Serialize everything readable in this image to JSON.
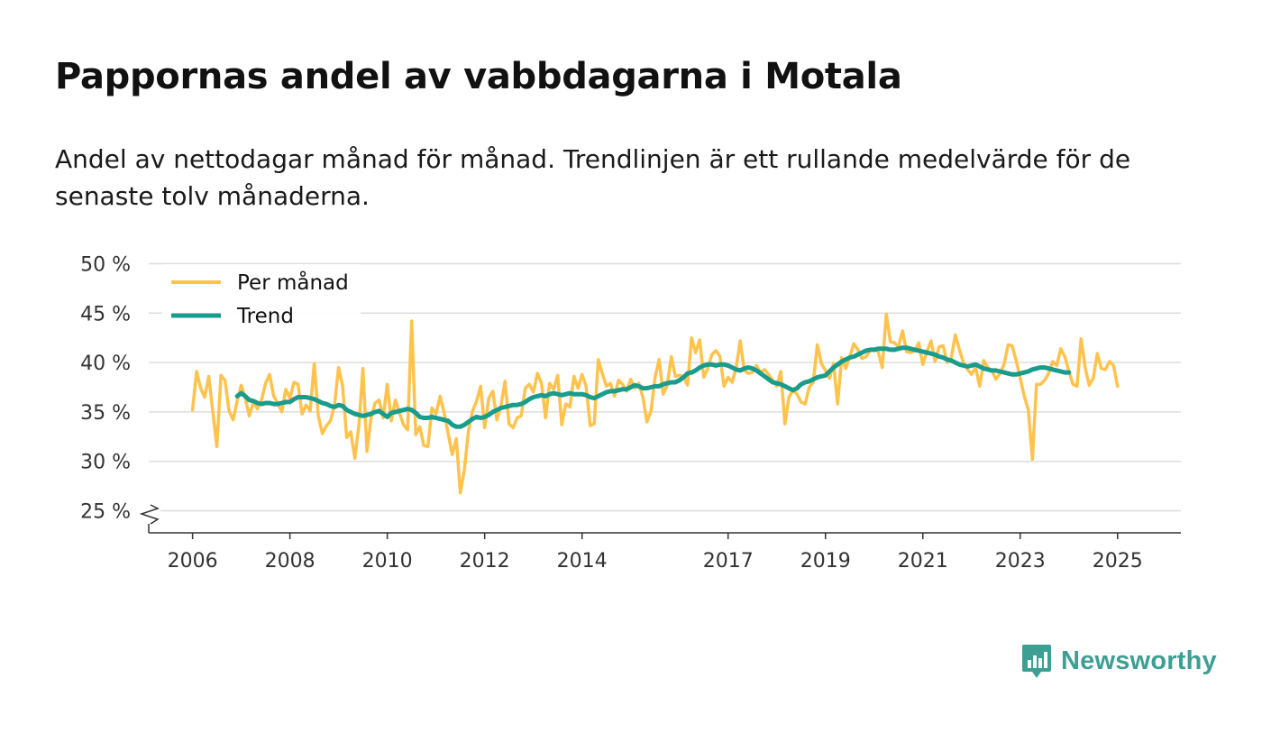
{
  "title": "Pappornas andel av vabbdagarna i Motala",
  "subtitle": "Andel av nettodagar månad för månad. Trendlinjen är ett rullande medelvärde för de senaste tolv månaderna.",
  "brand": {
    "name": "Newsworthy",
    "color": "#3d9f93"
  },
  "colors": {
    "monthly": "#ffc34d",
    "trend": "#1a9c8c",
    "grid": "#dddddd",
    "axis": "#333333"
  },
  "chart_data": {
    "type": "line",
    "ylim": [
      25,
      50
    ],
    "yticks": [
      25,
      30,
      35,
      40,
      45,
      50
    ],
    "ytick_labels": [
      "25 %",
      "30 %",
      "35 %",
      "40 %",
      "45 %",
      "50 %"
    ],
    "xticks": [
      2006,
      2008,
      2010,
      2012,
      2014,
      2017,
      2019,
      2021,
      2023,
      2025
    ],
    "xtick_labels": [
      "2006",
      "2008",
      "2010",
      "2012",
      "2014",
      "2017",
      "2019",
      "2021",
      "2023",
      "2025"
    ],
    "xlim": [
      2005.1,
      2026.3
    ],
    "legend": {
      "position": "top-left",
      "entries": [
        "Per månad",
        "Trend"
      ]
    },
    "series": [
      {
        "name": "Per månad",
        "start": 2006.0,
        "step": 0.0833333,
        "values": [
          35.2,
          39.1,
          37.4,
          36.5,
          38.6,
          35.0,
          31.5,
          38.7,
          38.2,
          35.1,
          34.2,
          36.1,
          37.7,
          36.4,
          34.6,
          36.0,
          35.3,
          36.2,
          37.9,
          38.8,
          36.6,
          35.9,
          35.0,
          37.3,
          36.4,
          38.0,
          37.8,
          34.8,
          35.7,
          35.1,
          39.9,
          34.6,
          32.8,
          33.6,
          34.1,
          35.7,
          39.5,
          37.6,
          32.4,
          33.0,
          30.3,
          33.6,
          39.4,
          31.0,
          34.4,
          35.9,
          36.2,
          34.4,
          37.8,
          34.1,
          36.2,
          34.9,
          33.7,
          33.2,
          44.2,
          32.7,
          33.5,
          31.6,
          31.5,
          35.4,
          34.8,
          36.6,
          34.9,
          32.8,
          30.7,
          32.3,
          26.8,
          29.2,
          33.1,
          35.1,
          36.1,
          37.6,
          33.4,
          36.4,
          37.1,
          34.2,
          35.6,
          38.1,
          33.8,
          33.4,
          34.4,
          34.6,
          37.4,
          37.8,
          37.0,
          38.9,
          37.9,
          34.4,
          37.9,
          37.3,
          38.7,
          33.7,
          35.8,
          35.5,
          38.6,
          37.4,
          38.8,
          37.6,
          33.6,
          33.8,
          40.3,
          38.9,
          37.6,
          37.9,
          36.6,
          38.2,
          37.8,
          37.1,
          38.3,
          37.4,
          37.9,
          36.5,
          34.0,
          35.1,
          38.5,
          40.3,
          36.8,
          37.7,
          40.6,
          38.6,
          38.7,
          38.6,
          37.7,
          42.5,
          41.0,
          42.3,
          38.5,
          39.4,
          40.8,
          41.2,
          40.6,
          37.6,
          38.5,
          38.0,
          39.5,
          42.2,
          39.2,
          38.9,
          39.0,
          39.7,
          39.0,
          39.3,
          38.8,
          38.2,
          37.6,
          39.1,
          33.8,
          36.5,
          37.2,
          36.8,
          36.0,
          35.8,
          37.5,
          38.0,
          41.8,
          39.9,
          39.2,
          38.4,
          39.9,
          35.8,
          40.5,
          39.4,
          40.6,
          41.9,
          41.3,
          40.4,
          40.6,
          41.2,
          41.4,
          41.1,
          39.5,
          44.9,
          42.1,
          42.0,
          41.6,
          43.2,
          41.1,
          41.0,
          41.2,
          42.0,
          39.8,
          41.1,
          42.2,
          40.1,
          41.6,
          41.7,
          40.0,
          40.5,
          42.8,
          41.3,
          40.0,
          39.3,
          38.8,
          39.5,
          37.6,
          40.2,
          39.5,
          39.2,
          38.3,
          38.9,
          39.8,
          41.8,
          41.7,
          40.2,
          38.4,
          36.6,
          35.2,
          30.2,
          37.8,
          37.8,
          38.2,
          38.9,
          40.1,
          39.7,
          41.4,
          40.6,
          39.1,
          37.8,
          37.6,
          42.4,
          39.5,
          37.7,
          38.4,
          40.9,
          39.4,
          39.3,
          40.1,
          39.7,
          37.6
        ]
      },
      {
        "name": "Trend",
        "start": 2006.9167,
        "step": 0.0833333,
        "values": [
          36.6,
          36.9,
          36.6,
          36.2,
          36.1,
          35.9,
          35.8,
          35.9,
          35.9,
          35.8,
          35.8,
          35.9,
          36.0,
          36.0,
          36.3,
          36.5,
          36.5,
          36.5,
          36.4,
          36.3,
          36.1,
          35.9,
          35.8,
          35.6,
          35.5,
          35.7,
          35.6,
          35.2,
          35.0,
          34.8,
          34.7,
          34.6,
          34.7,
          34.8,
          35.0,
          35.1,
          34.8,
          34.5,
          34.9,
          35.0,
          35.1,
          35.2,
          35.3,
          35.2,
          34.9,
          34.5,
          34.4,
          34.4,
          34.5,
          34.4,
          34.3,
          34.2,
          34.1,
          33.7,
          33.5,
          33.5,
          33.7,
          34.0,
          34.3,
          34.5,
          34.4,
          34.5,
          34.7,
          35.0,
          35.2,
          35.4,
          35.5,
          35.6,
          35.7,
          35.7,
          35.8,
          36.0,
          36.3,
          36.5,
          36.6,
          36.7,
          36.6,
          36.8,
          36.9,
          36.8,
          36.7,
          36.8,
          36.9,
          36.8,
          36.8,
          36.8,
          36.7,
          36.5,
          36.4,
          36.6,
          36.8,
          37.0,
          37.1,
          37.1,
          37.2,
          37.3,
          37.3,
          37.5,
          37.7,
          37.6,
          37.4,
          37.4,
          37.5,
          37.6,
          37.6,
          37.8,
          37.9,
          38.0,
          38.0,
          38.2,
          38.5,
          38.9,
          39.0,
          39.2,
          39.5,
          39.7,
          39.8,
          39.8,
          39.7,
          39.8,
          39.8,
          39.7,
          39.5,
          39.3,
          39.2,
          39.4,
          39.5,
          39.4,
          39.2,
          38.9,
          38.6,
          38.3,
          38.0,
          37.9,
          37.8,
          37.6,
          37.4,
          37.2,
          37.4,
          37.8,
          38.0,
          38.1,
          38.3,
          38.5,
          38.6,
          38.7,
          39.1,
          39.5,
          39.8,
          40.1,
          40.3,
          40.5,
          40.6,
          40.8,
          41.0,
          41.2,
          41.3,
          41.3,
          41.4,
          41.4,
          41.4,
          41.3,
          41.3,
          41.4,
          41.5,
          41.5,
          41.4,
          41.3,
          41.2,
          41.1,
          41.0,
          40.9,
          40.8,
          40.6,
          40.5,
          40.3,
          40.2,
          40.0,
          39.8,
          39.7,
          39.6,
          39.7,
          39.8,
          39.6,
          39.4,
          39.3,
          39.2,
          39.2,
          39.1,
          39.0,
          38.9,
          38.8,
          38.8,
          38.9,
          39.0,
          39.1,
          39.3,
          39.4,
          39.5,
          39.5,
          39.4,
          39.3,
          39.2,
          39.1,
          39.0,
          39.0
        ]
      }
    ]
  }
}
